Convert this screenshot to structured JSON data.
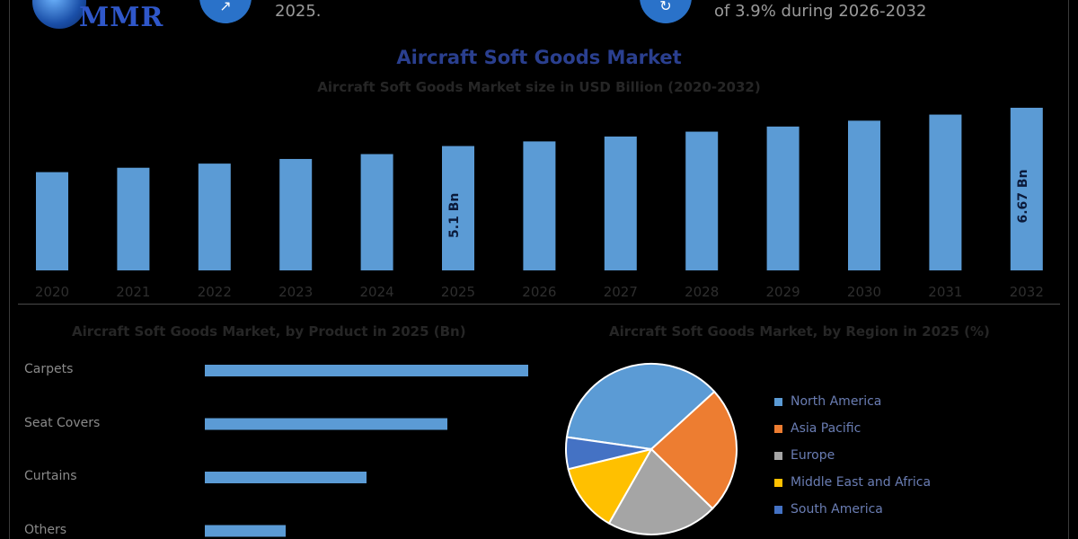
{
  "header": {
    "logo_text": "MMR",
    "note_left": "2025.",
    "note_right": "of 3.9% during 2026-2032"
  },
  "main_chart": {
    "title": "Aircraft Soft Goods Market",
    "subtitle": "Aircraft Soft Goods Market size in USD Billion (2020-2032)"
  },
  "chart_data": [
    {
      "type": "bar",
      "orientation": "vertical",
      "title": "Aircraft Soft Goods Market",
      "subtitle": "Aircraft Soft Goods Market size in USD Billion (2020-2032)",
      "categories": [
        "2020",
        "2021",
        "2022",
        "2023",
        "2024",
        "2025",
        "2026",
        "2027",
        "2028",
        "2029",
        "2030",
        "2031",
        "2032"
      ],
      "values": [
        4.03,
        4.21,
        4.38,
        4.57,
        4.77,
        5.1,
        5.29,
        5.49,
        5.69,
        5.9,
        6.14,
        6.39,
        6.67
      ],
      "data_labels": {
        "5": "5.1 Bn",
        "12": "6.67 Bn"
      },
      "ylim": [
        0,
        7
      ],
      "grid": false,
      "color": "#5b9bd5"
    },
    {
      "type": "bar",
      "orientation": "horizontal",
      "title": "Aircraft Soft Goods Market, by Product in 2025 (Bn)",
      "categories": [
        "Carpets",
        "Seat Covers",
        "Curtains",
        "Others"
      ],
      "values": [
        2.0,
        1.5,
        1.0,
        0.5
      ],
      "xlim": [
        0,
        2.2
      ],
      "color": "#5b9bd5"
    },
    {
      "type": "pie",
      "title": "Aircraft Soft Goods Market, by Region in 2025 (%)",
      "labels": [
        "North America",
        "Asia Pacific",
        "Europe",
        "Middle East and Africa",
        "South America"
      ],
      "values": [
        36,
        24,
        21,
        13,
        6
      ],
      "colors": [
        "#5b9bd5",
        "#ed7d31",
        "#a5a5a5",
        "#ffc000",
        "#4472c4"
      ],
      "legend": "right"
    }
  ],
  "sections": {
    "product_title": "Aircraft Soft Goods Market, by Product in 2025 (Bn)",
    "region_title": "Aircraft Soft Goods Market, by Region in 2025 (%)"
  }
}
